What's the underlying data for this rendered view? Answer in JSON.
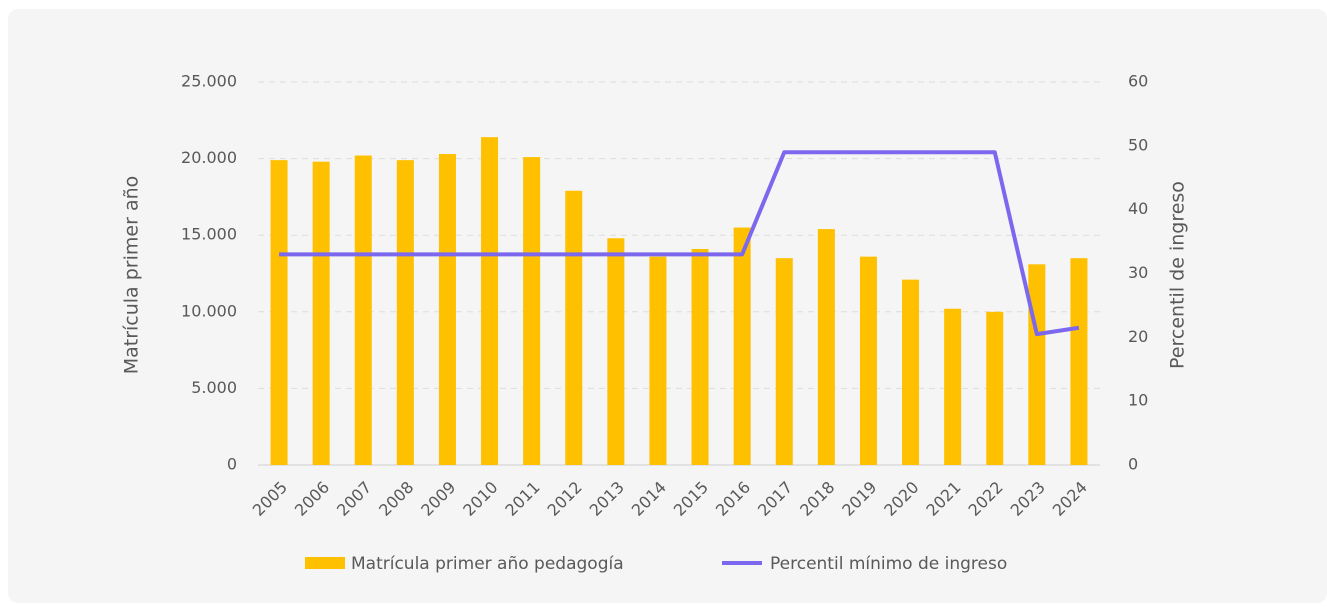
{
  "chart_data": {
    "type": "bar_line",
    "categories": [
      "2005",
      "2006",
      "2007",
      "2008",
      "2009",
      "2010",
      "2011",
      "2012",
      "2013",
      "2014",
      "2015",
      "2016",
      "2017",
      "2018",
      "2019",
      "2020",
      "2021",
      "2022",
      "2023",
      "2024"
    ],
    "series": [
      {
        "name": "Matrícula primer año pedagogía",
        "type": "bar",
        "color": "#ffc000",
        "values": [
          19900,
          19800,
          20200,
          19900,
          20300,
          21400,
          20100,
          17900,
          14800,
          13600,
          14100,
          15500,
          13500,
          15400,
          13600,
          12100,
          10200,
          10000,
          13100,
          13500
        ]
      },
      {
        "name": "Percentil mínimo de ingreso",
        "type": "line",
        "axis": "y2",
        "color": "#7b68ee",
        "values": [
          33,
          33,
          33,
          33,
          33,
          33,
          33,
          33,
          33,
          33,
          33,
          33,
          49,
          49,
          49,
          49,
          49,
          49,
          20.5,
          21.5
        ]
      }
    ],
    "ylabel": "Matrícula primer año",
    "y2label": "Percentil de ingreso",
    "ylim": [
      0,
      25000
    ],
    "yticks": [
      0,
      {
        "value": 5000,
        "label": "5.000"
      },
      {
        "value": 10000,
        "label": "10.000"
      },
      {
        "value": 15000,
        "label": "15.000"
      },
      {
        "value": 20000,
        "label": "20.000"
      },
      {
        "value": 25000,
        "label": "25.000"
      }
    ],
    "y2lim": [
      0,
      60
    ],
    "y2ticks": [
      0,
      10,
      20,
      30,
      40,
      50,
      60
    ],
    "grid": true,
    "legend": "bottom"
  }
}
